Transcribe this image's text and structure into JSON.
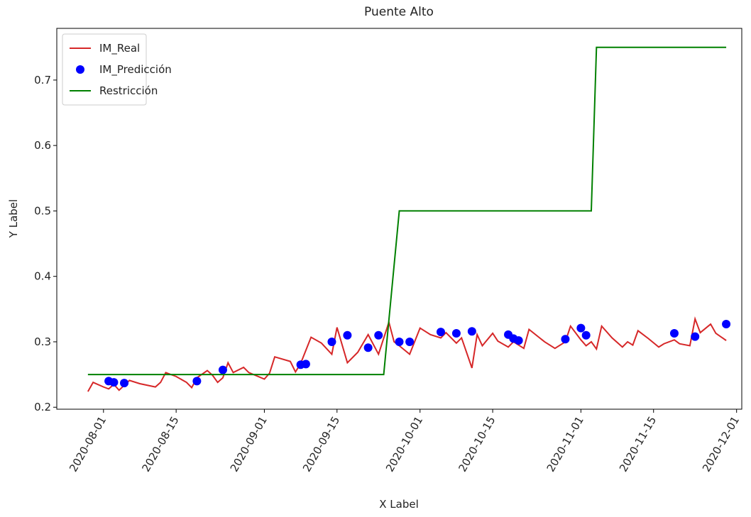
{
  "chart_data": {
    "type": "line",
    "title": "Puente Alto",
    "x_label": "X Label",
    "y_label": "Y Label",
    "xlim": [
      "2020-07-23",
      "2020-12-02"
    ],
    "xticks": [
      "2020-08-01",
      "2020-08-15",
      "2020-09-01",
      "2020-09-15",
      "2020-10-01",
      "2020-10-15",
      "2020-11-01",
      "2020-11-15",
      "2020-12-01"
    ],
    "ylim": [
      0.197,
      0.779
    ],
    "yticks": [
      0.2,
      0.3,
      0.4,
      0.5,
      0.6,
      0.7
    ],
    "legend": "upper left",
    "series": [
      {
        "name": "IM_Real",
        "color": "#d62728",
        "style": "line",
        "x": [
          "2020-07-29",
          "2020-07-30",
          "2020-08-01",
          "2020-08-02",
          "2020-08-03",
          "2020-08-04",
          "2020-08-06",
          "2020-08-08",
          "2020-08-11",
          "2020-08-12",
          "2020-08-13",
          "2020-08-15",
          "2020-08-17",
          "2020-08-18",
          "2020-08-19",
          "2020-08-21",
          "2020-08-22",
          "2020-08-23",
          "2020-08-24",
          "2020-08-25",
          "2020-08-26",
          "2020-08-28",
          "2020-08-29",
          "2020-09-01",
          "2020-09-02",
          "2020-09-03",
          "2020-09-06",
          "2020-09-07",
          "2020-09-08",
          "2020-09-10",
          "2020-09-12",
          "2020-09-14",
          "2020-09-15",
          "2020-09-17",
          "2020-09-19",
          "2020-09-21",
          "2020-09-23",
          "2020-09-25",
          "2020-09-26",
          "2020-09-27",
          "2020-09-29",
          "2020-10-01",
          "2020-10-03",
          "2020-10-05",
          "2020-10-06",
          "2020-10-08",
          "2020-10-09",
          "2020-10-11",
          "2020-10-12",
          "2020-10-13",
          "2020-10-15",
          "2020-10-16",
          "2020-10-18",
          "2020-10-19",
          "2020-10-21",
          "2020-10-22",
          "2020-10-25",
          "2020-10-27",
          "2020-10-29",
          "2020-10-30",
          "2020-11-01",
          "2020-11-02",
          "2020-11-03",
          "2020-11-04",
          "2020-11-05",
          "2020-11-07",
          "2020-11-09",
          "2020-11-10",
          "2020-11-11",
          "2020-11-12",
          "2020-11-14",
          "2020-11-16",
          "2020-11-17",
          "2020-11-19",
          "2020-11-20",
          "2020-11-22",
          "2020-11-23",
          "2020-11-24",
          "2020-11-26",
          "2020-11-27",
          "2020-11-29"
        ],
        "values": [
          0.224,
          0.238,
          0.231,
          0.228,
          0.235,
          0.226,
          0.241,
          0.236,
          0.231,
          0.238,
          0.253,
          0.247,
          0.238,
          0.23,
          0.245,
          0.256,
          0.249,
          0.238,
          0.245,
          0.268,
          0.253,
          0.261,
          0.253,
          0.243,
          0.252,
          0.277,
          0.27,
          0.254,
          0.267,
          0.307,
          0.298,
          0.281,
          0.322,
          0.268,
          0.284,
          0.311,
          0.281,
          0.33,
          0.3,
          0.294,
          0.281,
          0.321,
          0.311,
          0.306,
          0.314,
          0.298,
          0.306,
          0.26,
          0.311,
          0.294,
          0.313,
          0.301,
          0.292,
          0.3,
          0.29,
          0.319,
          0.3,
          0.29,
          0.3,
          0.324,
          0.303,
          0.294,
          0.3,
          0.289,
          0.324,
          0.306,
          0.292,
          0.3,
          0.295,
          0.317,
          0.305,
          0.292,
          0.297,
          0.303,
          0.297,
          0.294,
          0.335,
          0.314,
          0.327,
          0.313,
          0.302
        ]
      },
      {
        "name": "IM_Predicción",
        "color": "#0000ff",
        "style": "marker",
        "x": [
          "2020-08-02",
          "2020-08-03",
          "2020-08-05",
          "2020-08-19",
          "2020-08-24",
          "2020-09-08",
          "2020-09-09",
          "2020-09-14",
          "2020-09-17",
          "2020-09-21",
          "2020-09-23",
          "2020-09-27",
          "2020-09-29",
          "2020-10-05",
          "2020-10-08",
          "2020-10-11",
          "2020-10-18",
          "2020-10-19",
          "2020-10-20",
          "2020-10-29",
          "2020-11-01",
          "2020-11-02",
          "2020-11-19",
          "2020-11-23",
          "2020-11-29"
        ],
        "values": [
          0.24,
          0.238,
          0.237,
          0.24,
          0.257,
          0.265,
          0.266,
          0.3,
          0.31,
          0.291,
          0.31,
          0.3,
          0.3,
          0.315,
          0.313,
          0.316,
          0.311,
          0.305,
          0.302,
          0.304,
          0.321,
          0.31,
          0.313,
          0.308,
          0.327
        ]
      },
      {
        "name": "Restricción",
        "color": "#008000",
        "style": "line",
        "x": [
          "2020-07-29",
          "2020-09-24",
          "2020-09-27",
          "2020-11-03",
          "2020-11-04",
          "2020-11-29"
        ],
        "values": [
          0.25,
          0.25,
          0.5,
          0.5,
          0.75,
          0.75
        ]
      }
    ]
  }
}
